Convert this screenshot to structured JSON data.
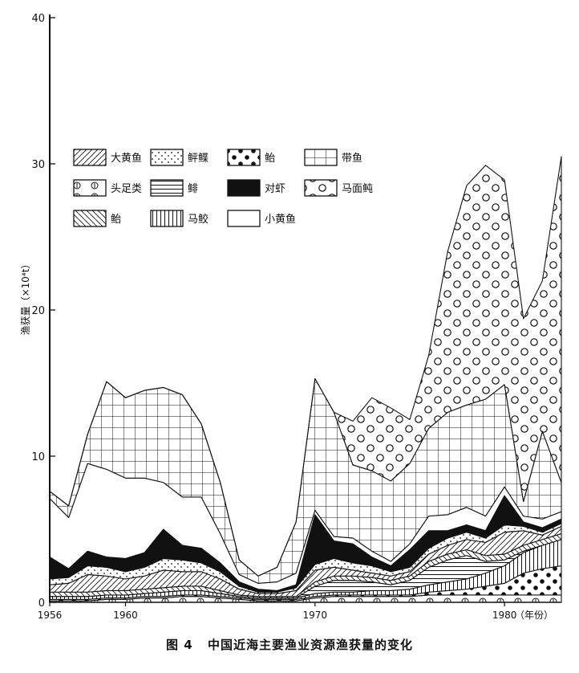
{
  "caption": {
    "figure_number": "图 4",
    "title": "中国近海主要渔业资源渔获量的变化"
  },
  "colors": {
    "ink": "#111111",
    "paper": "#ffffff"
  },
  "chart_data": {
    "type": "area",
    "stacked": true,
    "ylabel": "渔获量（×10⁴t）",
    "xlabel": "（年份）",
    "ylim": [
      0,
      40
    ],
    "xlim": [
      1956,
      1983
    ],
    "x_ticks": [
      1956,
      1960,
      1970,
      1980
    ],
    "y_ticks": [
      0,
      10,
      20,
      30,
      40
    ],
    "legend_placement": "top-left",
    "grid": false,
    "x": [
      1956,
      1957,
      1958,
      1959,
      1960,
      1961,
      1962,
      1963,
      1964,
      1965,
      1966,
      1967,
      1968,
      1969,
      1970,
      1971,
      1972,
      1973,
      1974,
      1975,
      1976,
      1977,
      1978,
      1979,
      1980,
      1981,
      1982,
      1983
    ],
    "series": [
      {
        "name": "头足类",
        "pattern": "circle-bar",
        "values": [
          0.1,
          0.1,
          0.1,
          0.2,
          0.2,
          0.3,
          0.3,
          0.4,
          0.4,
          0.3,
          0.2,
          0.1,
          0.1,
          0.1,
          0.3,
          0.4,
          0.4,
          0.4,
          0.4,
          0.4,
          0.5,
          0.5,
          0.5,
          0.5,
          0.5,
          0.5,
          0.5,
          0.5
        ]
      },
      {
        "name": "鲐",
        "pattern": "dots-large",
        "values": [
          0.1,
          0.1,
          0.1,
          0.1,
          0.1,
          0.1,
          0.1,
          0.1,
          0.1,
          0.1,
          0.1,
          0.1,
          0.1,
          0.1,
          0.1,
          0.1,
          0.1,
          0.1,
          0.1,
          0.1,
          0.2,
          0.3,
          0.4,
          0.6,
          0.8,
          1.5,
          1.8,
          2.0
        ]
      },
      {
        "name": "马鲛",
        "pattern": "vertical",
        "values": [
          0.2,
          0.2,
          0.2,
          0.2,
          0.2,
          0.2,
          0.3,
          0.3,
          0.3,
          0.2,
          0.1,
          0.1,
          0.1,
          0.1,
          0.2,
          0.2,
          0.2,
          0.3,
          0.3,
          0.4,
          0.5,
          0.6,
          0.7,
          0.9,
          1.2,
          1.4,
          1.6,
          1.8
        ]
      },
      {
        "name": "鲱",
        "pattern": "horizontal",
        "values": [
          0.0,
          0.0,
          0.0,
          0.0,
          0.0,
          0.0,
          0.0,
          0.0,
          0.0,
          0.0,
          0.0,
          0.0,
          0.0,
          0.0,
          0.5,
          0.8,
          0.8,
          0.6,
          0.4,
          0.6,
          1.2,
          1.5,
          1.6,
          0.8,
          0.4,
          0.1,
          0.0,
          0.0
        ]
      },
      {
        "name": "鲐",
        "pattern": "backslash",
        "values": [
          0.3,
          0.3,
          0.3,
          0.3,
          0.3,
          0.3,
          0.3,
          0.3,
          0.3,
          0.2,
          0.1,
          0.1,
          0.1,
          0.1,
          0.3,
          0.3,
          0.3,
          0.3,
          0.3,
          0.3,
          0.4,
          0.4,
          0.4,
          0.4,
          0.4,
          0.4,
          0.4,
          0.4
        ]
      },
      {
        "name": "大黄鱼",
        "pattern": "slash",
        "values": [
          0.5,
          0.6,
          1.2,
          1.0,
          0.8,
          0.9,
          1.2,
          1.0,
          1.0,
          0.8,
          0.4,
          0.2,
          0.2,
          0.4,
          0.8,
          0.6,
          0.4,
          0.3,
          0.3,
          0.3,
          0.5,
          0.6,
          0.7,
          0.9,
          1.5,
          1.0,
          0.3,
          0.5
        ]
      },
      {
        "name": "鲆鲽",
        "pattern": "dots-small",
        "values": [
          0.4,
          0.4,
          0.6,
          0.6,
          0.5,
          0.6,
          0.8,
          0.8,
          0.6,
          0.5,
          0.2,
          0.1,
          0.1,
          0.2,
          0.4,
          0.6,
          0.5,
          0.5,
          0.3,
          0.3,
          0.4,
          0.5,
          0.5,
          0.3,
          0.5,
          0.3,
          0.2,
          0.2
        ]
      },
      {
        "name": "对虾",
        "pattern": "solid",
        "values": [
          1.5,
          0.6,
          1.0,
          0.7,
          0.9,
          1.0,
          2.0,
          1.0,
          1.0,
          0.6,
          0.3,
          0.2,
          0.1,
          0.2,
          3.4,
          1.2,
          1.3,
          0.6,
          0.4,
          1.2,
          1.2,
          0.5,
          0.5,
          0.5,
          2.0,
          0.3,
          0.3,
          0.3
        ]
      },
      {
        "name": "小黄鱼",
        "pattern": "blank",
        "values": [
          4.0,
          3.5,
          6.0,
          6.0,
          5.5,
          5.1,
          3.2,
          3.3,
          3.5,
          2.0,
          0.5,
          0.4,
          0.6,
          0.8,
          0.3,
          0.3,
          0.4,
          0.4,
          0.3,
          0.4,
          1.0,
          1.1,
          1.2,
          1.0,
          0.6,
          0.4,
          0.6,
          0.5
        ]
      },
      {
        "name": "带鱼",
        "pattern": "grid",
        "values": [
          0.5,
          0.8,
          2.0,
          6.0,
          5.5,
          6.0,
          6.5,
          7.0,
          5.0,
          3.5,
          1.0,
          0.5,
          1.0,
          3.5,
          9.0,
          8.5,
          5.0,
          5.5,
          5.5,
          5.5,
          6.0,
          7.0,
          7.0,
          8.0,
          7.0,
          1.0,
          6.0,
          2.0
        ]
      },
      {
        "name": "马面鲀",
        "pattern": "circle",
        "values": [
          0.0,
          0.0,
          0.0,
          0.0,
          0.0,
          0.0,
          0.0,
          0.0,
          0.0,
          0.0,
          0.0,
          0.0,
          0.0,
          0.0,
          0.0,
          0.0,
          3.0,
          5.0,
          5.0,
          3.0,
          5.0,
          11.0,
          15.0,
          16.0,
          14.0,
          12.5,
          10.3,
          22.3
        ]
      }
    ]
  }
}
